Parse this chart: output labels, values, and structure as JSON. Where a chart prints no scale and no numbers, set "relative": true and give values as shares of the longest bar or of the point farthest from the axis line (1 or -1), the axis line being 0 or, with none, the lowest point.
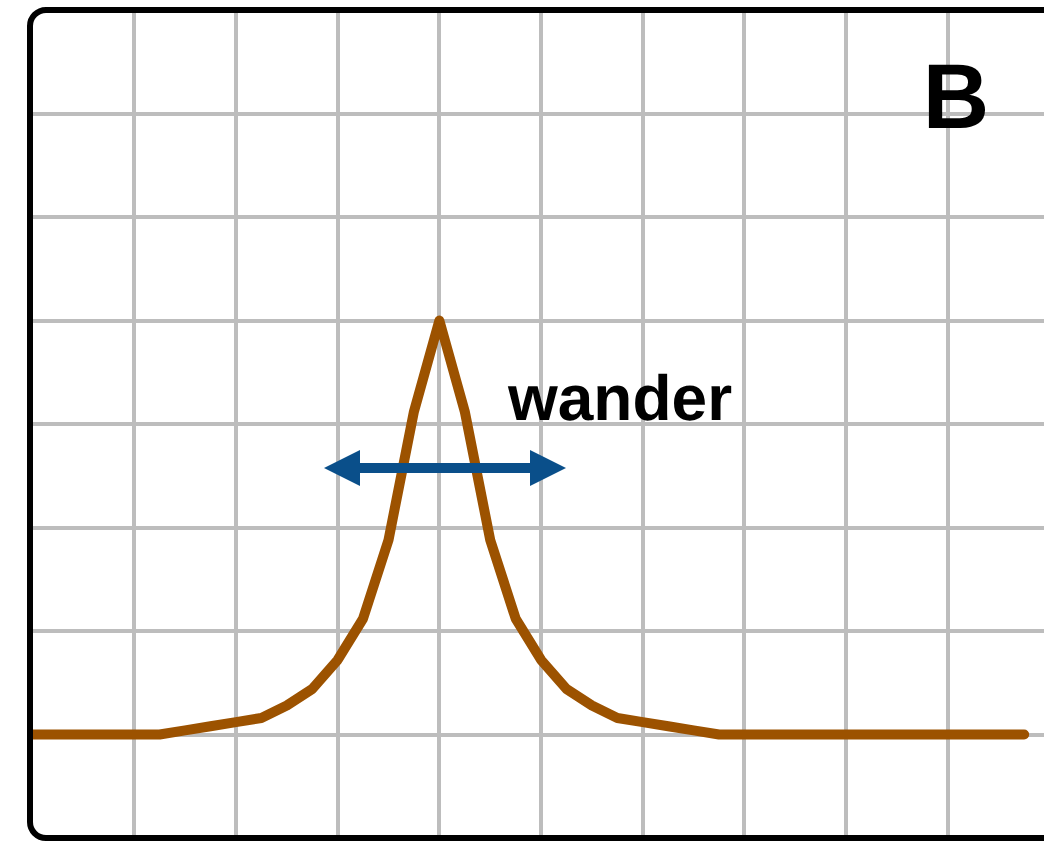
{
  "chart_data": {
    "type": "line",
    "relative": true,
    "annotations": [
      "B",
      "wander"
    ],
    "categories": [
      null,
      null,
      null,
      null,
      null,
      null,
      null,
      null,
      null,
      null,
      null,
      null,
      null,
      null,
      null,
      null,
      null,
      null,
      null,
      null,
      null,
      null,
      null,
      null,
      null,
      null,
      null,
      null,
      null,
      null,
      null,
      null,
      null,
      null,
      null,
      null,
      null,
      null,
      null,
      null
    ],
    "series": [
      {
        "color": "#9c5200",
        "values": [
          0,
          0,
          0,
          0,
          0,
          0,
          0.01,
          0.02,
          0.03,
          0.04,
          0.07,
          0.11,
          0.18,
          0.28,
          0.47,
          0.78,
          1,
          0.78,
          0.47,
          0.28,
          0.18,
          0.11,
          0.07,
          0.04,
          0.03,
          0.02,
          0.01,
          0,
          0,
          0,
          0,
          0,
          0,
          0,
          0,
          0,
          0,
          0,
          0,
          0
        ]
      }
    ],
    "grid": true,
    "legend": false,
    "marker": "none",
    "line_style": "solid"
  }
}
